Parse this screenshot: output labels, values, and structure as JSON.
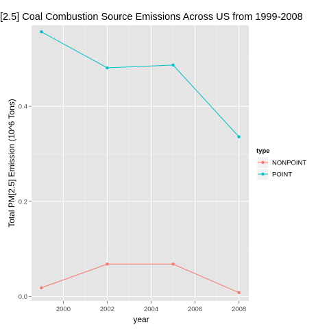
{
  "chart_data": {
    "type": "line",
    "title": "[2.5] Coal Combustion Source Emissions Across US from 1999-2008",
    "xlabel": "year",
    "ylabel": "Total PM[2.5] Emission (10^6 Tons)",
    "x": [
      1999,
      2002,
      2005,
      2008
    ],
    "xlim": [
      1998.55,
      2008.45
    ],
    "ylim": [
      -0.0095,
      0.5705
    ],
    "x_ticks": [
      2000,
      2002,
      2004,
      2006,
      2008
    ],
    "y_ticks": [
      0.0,
      0.2,
      0.4
    ],
    "x_tick_labels": [
      "2000",
      "2002",
      "2004",
      "2006",
      "2008"
    ],
    "y_tick_labels": [
      "0.0",
      "0.2",
      "0.4"
    ],
    "grid": true,
    "legend_position": "right",
    "legend_title": "type",
    "series": [
      {
        "name": "NONPOINT",
        "color": "#F8766D",
        "values": [
          0.018,
          0.068,
          0.068,
          0.008
        ]
      },
      {
        "name": "POINT",
        "color": "#00BFC4",
        "values": [
          0.557,
          0.481,
          0.487,
          0.336
        ]
      }
    ]
  }
}
